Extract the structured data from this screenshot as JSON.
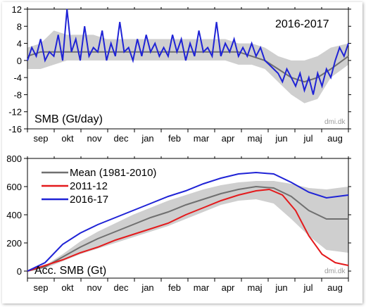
{
  "colors": {
    "mean": "#707070",
    "band": "#cfcfcf",
    "red": "#e41a1c",
    "blue": "#1f23d6"
  },
  "months": [
    "sep",
    "okt",
    "nov",
    "dec",
    "jan",
    "feb",
    "mar",
    "apr",
    "maj",
    "jun",
    "jul",
    "aug"
  ],
  "chart_data": [
    {
      "type": "line",
      "title": "2016-2017",
      "ylabel": "SMB (Gt/day)",
      "credit": "dmi.dk",
      "x_unit": "day of year from 1 Sep",
      "xlim": [
        0,
        365
      ],
      "ylim": [
        -16,
        12
      ],
      "yticks": [
        -16,
        -12,
        -8,
        -4,
        0,
        4,
        8,
        12
      ],
      "months": [
        "sep",
        "okt",
        "nov",
        "dec",
        "jan",
        "feb",
        "mar",
        "apr",
        "maj",
        "jun",
        "jul",
        "aug"
      ],
      "band": {
        "x": [
          0,
          15,
          30,
          45,
          60,
          75,
          90,
          105,
          120,
          135,
          150,
          165,
          180,
          195,
          210,
          225,
          240,
          255,
          270,
          285,
          300,
          315,
          330,
          345,
          365
        ],
        "upper": [
          3,
          4,
          7,
          6,
          6,
          6,
          5,
          5,
          5,
          5,
          5,
          5,
          5,
          5,
          5,
          5,
          4,
          4,
          3,
          1,
          0,
          0,
          1,
          3,
          4
        ],
        "lower": [
          -2,
          -2,
          -1,
          0,
          0,
          0,
          0,
          0,
          0,
          0,
          0,
          0,
          0,
          0,
          0,
          0,
          -1,
          -1,
          -2,
          -5,
          -8,
          -10,
          -9,
          -4,
          -1
        ]
      },
      "mean": {
        "x": [
          0,
          15,
          30,
          45,
          60,
          75,
          90,
          105,
          120,
          135,
          150,
          165,
          180,
          195,
          210,
          225,
          240,
          255,
          270,
          285,
          300,
          315,
          330,
          345,
          365
        ],
        "y": [
          1,
          2,
          2,
          2,
          2,
          2,
          2,
          2,
          2,
          2,
          2,
          2,
          2,
          2,
          2,
          2,
          2,
          1,
          0,
          -2,
          -4,
          -5,
          -4,
          -2,
          1
        ]
      },
      "series": [
        {
          "name": "2016-2017",
          "x": [
            0,
            5,
            10,
            15,
            20,
            25,
            30,
            35,
            40,
            45,
            50,
            55,
            60,
            65,
            70,
            75,
            80,
            85,
            90,
            95,
            100,
            105,
            110,
            115,
            120,
            125,
            130,
            135,
            140,
            145,
            150,
            155,
            160,
            165,
            170,
            175,
            180,
            185,
            190,
            195,
            200,
            205,
            210,
            215,
            220,
            225,
            230,
            235,
            240,
            245,
            250,
            255,
            260,
            265,
            270,
            275,
            280,
            285,
            290,
            295,
            300,
            305,
            310,
            315,
            320,
            325,
            330,
            335,
            340,
            345,
            350,
            355,
            360,
            365
          ],
          "y": [
            0,
            3,
            1,
            5,
            0,
            2,
            1,
            6,
            0,
            12,
            2,
            5,
            0,
            8,
            1,
            3,
            2,
            7,
            0,
            4,
            1,
            9,
            2,
            3,
            0,
            5,
            1,
            6,
            2,
            4,
            1,
            3,
            1,
            6,
            2,
            5,
            0,
            4,
            1,
            7,
            2,
            3,
            1,
            9,
            1,
            4,
            2,
            5,
            1,
            3,
            1,
            4,
            1,
            3,
            0,
            -1,
            -2,
            -3,
            -5,
            -2,
            -4,
            -6,
            -3,
            -7,
            -4,
            -8,
            -3,
            -6,
            -2,
            -4,
            0,
            3,
            1,
            4
          ]
        }
      ]
    },
    {
      "type": "line",
      "ylabel": "Acc. SMB (Gt)",
      "credit": "dmi.dk",
      "x_unit": "day of year from 1 Sep",
      "xlim": [
        0,
        365
      ],
      "ylim": [
        -50,
        800
      ],
      "yticks": [
        0,
        200,
        400,
        600,
        800
      ],
      "months": [
        "sep",
        "okt",
        "nov",
        "dec",
        "jan",
        "feb",
        "mar",
        "apr",
        "maj",
        "jun",
        "jul",
        "aug"
      ],
      "band": {
        "x": [
          0,
          20,
          40,
          60,
          80,
          100,
          120,
          140,
          160,
          180,
          200,
          220,
          240,
          260,
          280,
          300,
          320,
          340,
          365
        ],
        "upper": [
          0,
          40,
          120,
          210,
          280,
          340,
          400,
          450,
          500,
          540,
          580,
          610,
          630,
          640,
          640,
          620,
          590,
          580,
          600
        ],
        "lower": [
          0,
          20,
          70,
          120,
          160,
          200,
          240,
          280,
          320,
          370,
          420,
          470,
          500,
          510,
          480,
          370,
          250,
          150,
          130
        ]
      },
      "series": [
        {
          "name": "Mean (1981-2010)",
          "x": [
            0,
            20,
            40,
            60,
            80,
            100,
            120,
            140,
            160,
            180,
            200,
            220,
            240,
            260,
            280,
            300,
            320,
            340,
            365
          ],
          "y": [
            0,
            30,
            100,
            170,
            230,
            280,
            330,
            380,
            420,
            470,
            510,
            550,
            580,
            600,
            590,
            530,
            430,
            370,
            370
          ]
        },
        {
          "name": "2011-12",
          "x": [
            0,
            20,
            40,
            60,
            80,
            100,
            120,
            140,
            160,
            180,
            200,
            220,
            240,
            260,
            275,
            290,
            305,
            320,
            335,
            350,
            365
          ],
          "y": [
            0,
            40,
            80,
            130,
            170,
            220,
            260,
            300,
            340,
            400,
            450,
            500,
            540,
            570,
            580,
            540,
            430,
            250,
            120,
            60,
            40
          ]
        },
        {
          "name": "2016-17",
          "x": [
            0,
            20,
            40,
            60,
            80,
            100,
            120,
            140,
            160,
            180,
            200,
            220,
            240,
            260,
            280,
            300,
            320,
            340,
            365
          ],
          "y": [
            0,
            60,
            190,
            270,
            330,
            380,
            430,
            480,
            530,
            570,
            620,
            660,
            690,
            700,
            690,
            630,
            560,
            520,
            540
          ]
        }
      ]
    }
  ]
}
